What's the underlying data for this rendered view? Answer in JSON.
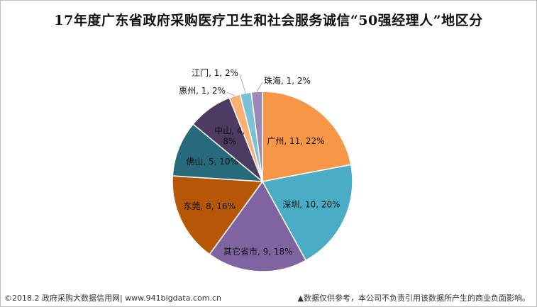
{
  "chart_data": {
    "type": "pie",
    "title": "17年度广东省政府采购医疗卫生和社会服务诚信“50强经理人”地区分",
    "slices": [
      {
        "name": "广州",
        "value": 11,
        "percent": "22%",
        "color": "#F79646"
      },
      {
        "name": "深圳",
        "value": 10,
        "percent": "20%",
        "color": "#4BACC6"
      },
      {
        "name": "其它省市",
        "value": 9,
        "percent": "18%",
        "color": "#8064A2"
      },
      {
        "name": "东莞",
        "value": 8,
        "percent": "16%",
        "color": "#B65708"
      },
      {
        "name": "佛山",
        "value": 5,
        "percent": "10%",
        "color": "#276A7C"
      },
      {
        "name": "中山",
        "value": 4,
        "percent": "8%",
        "color": "#4D3B62"
      },
      {
        "name": "惠州",
        "value": 1,
        "percent": "2%",
        "color": "#F9B074"
      },
      {
        "name": "江门",
        "value": 1,
        "percent": "2%",
        "color": "#79C2D5"
      },
      {
        "name": "珠海",
        "value": 1,
        "percent": "2%",
        "color": "#9D88BA"
      }
    ],
    "label_format": "name, value, percent",
    "start_angle": "12 o'clock",
    "direction": "clockwise",
    "legend": "none"
  },
  "footer": {
    "left": "©2018.2 政府采购大数据信用网| www.941bigdata.com.cn",
    "right": "▲数据仅供参考，本公司不负责引用该数据所产生的商业负面影响。"
  }
}
